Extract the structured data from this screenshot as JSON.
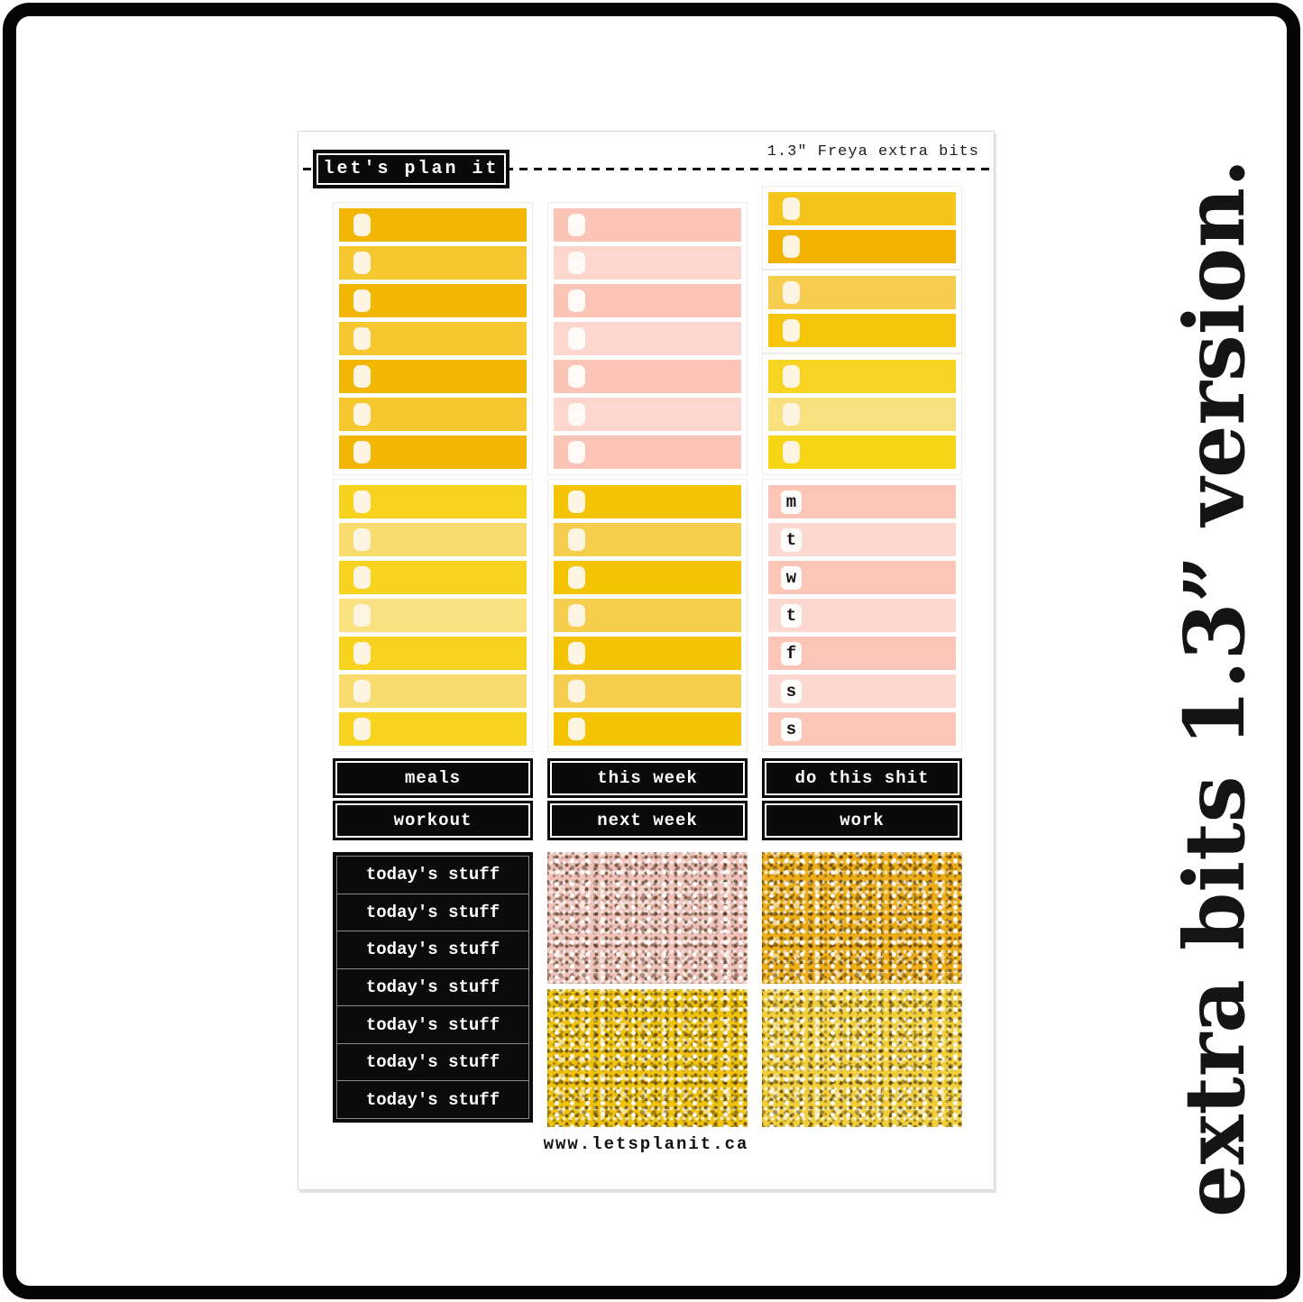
{
  "page": {
    "vertical_caption": "extra bits 1.3” version."
  },
  "header": {
    "brand_label": "let's plan it",
    "sheet_title": "1.3\" Freya extra bits"
  },
  "footer": {
    "url": "www.letsplanit.ca"
  },
  "colors": {
    "frame": "#050505",
    "checkbox_yellow": "#FDF5E1",
    "checkbox_pink": "#FFFAF5",
    "day_chip": "#FFFDFB"
  },
  "section1": {
    "col1_rows": [
      "#F2B705",
      "#F6C72E",
      "#F2B705",
      "#F6C72E",
      "#F2B705",
      "#F6C72E",
      "#F2B705"
    ],
    "col2_rows": [
      "#FCC4B6",
      "#FDD7CD",
      "#FCC4B6",
      "#FDD7CD",
      "#FCC4B6",
      "#FDD7CD",
      "#FCC4B6"
    ],
    "col3_group1": [
      "#F5C51E",
      "#F1B300"
    ],
    "col3_group2": [
      "#F6CD4E",
      "#F5C60A"
    ],
    "col3_group3": [
      "#F7D322",
      "#F9E07E",
      "#F6D515"
    ]
  },
  "section2": {
    "col1_rows": [
      "#F7D31F",
      "#F9DC6F",
      "#F7D31F",
      "#FAE181",
      "#F7D31F",
      "#F9DC6F",
      "#F7D31F"
    ],
    "col2_rows": [
      "#F4C403",
      "#F6CE4D",
      "#F4C403",
      "#F6CE4D",
      "#F4C403",
      "#F6CE4D",
      "#F4C403"
    ],
    "day_rows": [
      {
        "letter": "m",
        "color": "#FBC6B8"
      },
      {
        "letter": "t",
        "color": "#FDD8D0"
      },
      {
        "letter": "w",
        "color": "#FBC6B8"
      },
      {
        "letter": "t",
        "color": "#FDD8D0"
      },
      {
        "letter": "f",
        "color": "#FBC6B8"
      },
      {
        "letter": "s",
        "color": "#FDD8D0"
      },
      {
        "letter": "s",
        "color": "#FBC6B8"
      }
    ]
  },
  "labels": {
    "meals": "meals",
    "workout": "workout",
    "this_week": "this week",
    "next_week": "next week",
    "do_this": "do this shit",
    "work": "work",
    "today_rows": [
      "today's stuff",
      "today's stuff",
      "today's stuff",
      "today's stuff",
      "today's stuff",
      "today's stuff",
      "today's stuff"
    ]
  },
  "swatches": {
    "pink_glitter": "#F1C2B9",
    "amber_glitter": "#EDAD18",
    "gold_glitter": "#EFC20E",
    "yellow_glitter": "#F2CF3A"
  }
}
